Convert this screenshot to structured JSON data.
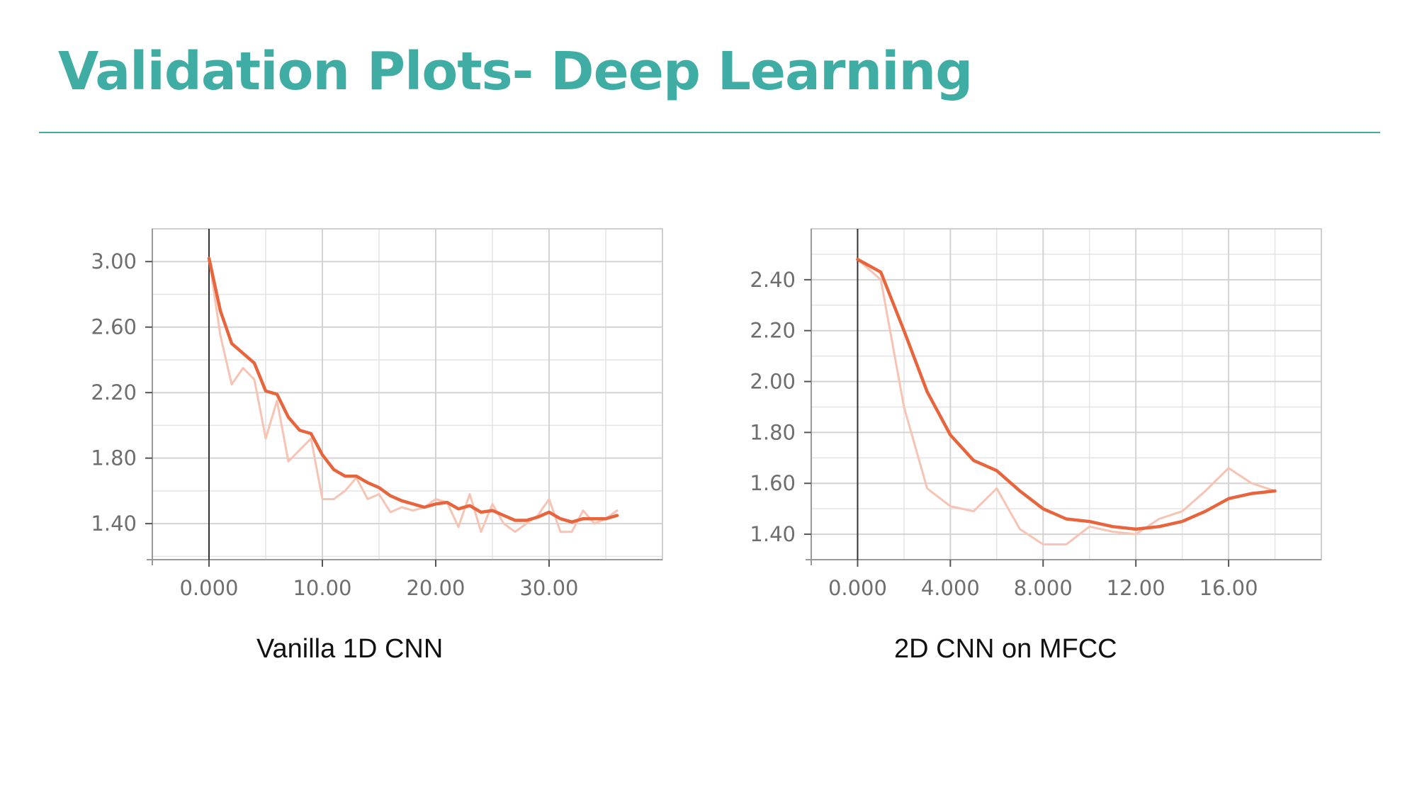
{
  "slide": {
    "title": "Validation Plots- Deep Learning"
  },
  "colors": {
    "accent": "#3fada4",
    "line_smoothed": "#e8643c",
    "line_raw": "#f7c3b3",
    "grid": "#d3d3d3"
  },
  "chart_data": [
    {
      "type": "line",
      "caption": "Vanilla 1D CNN",
      "xlim": [
        -5,
        40
      ],
      "ylim": [
        1.18,
        3.2
      ],
      "x_ticks": [
        0,
        10,
        20,
        30
      ],
      "x_tick_labels": [
        "0.000",
        "10.00",
        "20.00",
        "30.00"
      ],
      "y_ticks": [
        3.0,
        2.6,
        2.2,
        1.8,
        1.4
      ],
      "y_tick_labels": [
        "3.00",
        "2.60",
        "2.20",
        "1.80",
        "1.40"
      ],
      "grid": true,
      "series": [
        {
          "role": "raw",
          "x": [
            0,
            1,
            2,
            3,
            4,
            5,
            6,
            7,
            8,
            9,
            10,
            11,
            12,
            13,
            14,
            15,
            16,
            17,
            18,
            19,
            20,
            21,
            22,
            23,
            24,
            25,
            26,
            27,
            28,
            29,
            30,
            31,
            32,
            33,
            34,
            35,
            36
          ],
          "y": [
            3.02,
            2.55,
            2.25,
            2.35,
            2.28,
            1.92,
            2.15,
            1.78,
            1.85,
            1.92,
            1.55,
            1.55,
            1.6,
            1.68,
            1.55,
            1.58,
            1.47,
            1.5,
            1.48,
            1.5,
            1.55,
            1.53,
            1.38,
            1.58,
            1.35,
            1.52,
            1.4,
            1.35,
            1.4,
            1.45,
            1.55,
            1.35,
            1.35,
            1.48,
            1.4,
            1.43,
            1.48
          ]
        },
        {
          "role": "smoothed",
          "x": [
            0,
            1,
            2,
            3,
            4,
            5,
            6,
            7,
            8,
            9,
            10,
            11,
            12,
            13,
            14,
            15,
            16,
            17,
            18,
            19,
            20,
            21,
            22,
            23,
            24,
            25,
            26,
            27,
            28,
            29,
            30,
            31,
            32,
            33,
            34,
            35,
            36
          ],
          "y": [
            3.02,
            2.7,
            2.5,
            2.44,
            2.38,
            2.21,
            2.19,
            2.05,
            1.97,
            1.95,
            1.82,
            1.73,
            1.69,
            1.69,
            1.65,
            1.62,
            1.57,
            1.54,
            1.52,
            1.5,
            1.52,
            1.53,
            1.49,
            1.51,
            1.47,
            1.48,
            1.45,
            1.42,
            1.42,
            1.44,
            1.47,
            1.43,
            1.41,
            1.43,
            1.43,
            1.43,
            1.45
          ]
        }
      ]
    },
    {
      "type": "line",
      "caption": "2D CNN on MFCC",
      "xlim": [
        -2,
        20
      ],
      "ylim": [
        1.3,
        2.6
      ],
      "x_ticks": [
        0,
        4,
        8,
        12,
        16
      ],
      "x_tick_labels": [
        "0.000",
        "4.000",
        "8.000",
        "12.00",
        "16.00"
      ],
      "y_ticks": [
        2.4,
        2.2,
        2.0,
        1.8,
        1.6,
        1.4
      ],
      "y_tick_labels": [
        "2.40",
        "2.20",
        "2.00",
        "1.80",
        "1.60",
        "1.40"
      ],
      "grid": true,
      "series": [
        {
          "role": "raw",
          "x": [
            0,
            1,
            2,
            3,
            4,
            5,
            6,
            7,
            8,
            9,
            10,
            11,
            12,
            13,
            14,
            15,
            16,
            17,
            18
          ],
          "y": [
            2.48,
            2.4,
            1.9,
            1.58,
            1.51,
            1.49,
            1.58,
            1.42,
            1.36,
            1.36,
            1.43,
            1.41,
            1.4,
            1.46,
            1.49,
            1.57,
            1.66,
            1.6,
            1.57
          ]
        },
        {
          "role": "smoothed",
          "x": [
            0,
            1,
            2,
            3,
            4,
            5,
            6,
            7,
            8,
            9,
            10,
            11,
            12,
            13,
            14,
            15,
            16,
            17,
            18
          ],
          "y": [
            2.48,
            2.43,
            2.2,
            1.96,
            1.79,
            1.69,
            1.65,
            1.57,
            1.5,
            1.46,
            1.45,
            1.43,
            1.42,
            1.43,
            1.45,
            1.49,
            1.54,
            1.56,
            1.57
          ]
        }
      ]
    }
  ]
}
